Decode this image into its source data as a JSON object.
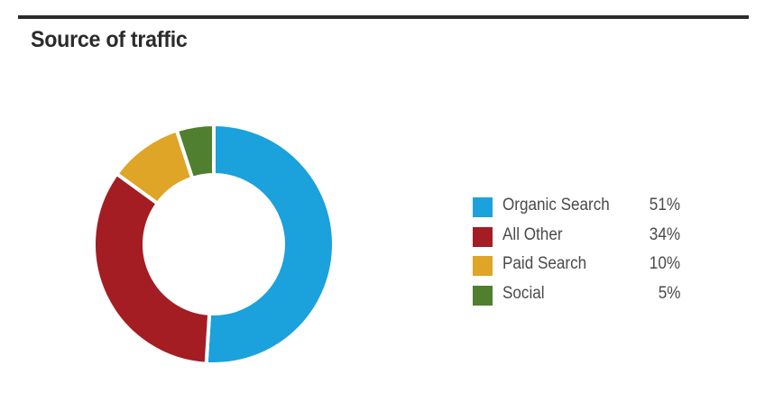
{
  "chart_data": {
    "type": "pie",
    "title": "Source of traffic",
    "categories": [
      "Organic Search",
      "All Other",
      "Paid Search",
      "Social"
    ],
    "values": [
      51,
      34,
      10,
      5
    ],
    "value_labels": [
      "51%",
      "34%",
      "10%",
      "5%"
    ],
    "colors": [
      "#1ba1dc",
      "#a31d22",
      "#dfa526",
      "#4f7f2f"
    ],
    "style": "donut",
    "legend_placement": "right"
  }
}
